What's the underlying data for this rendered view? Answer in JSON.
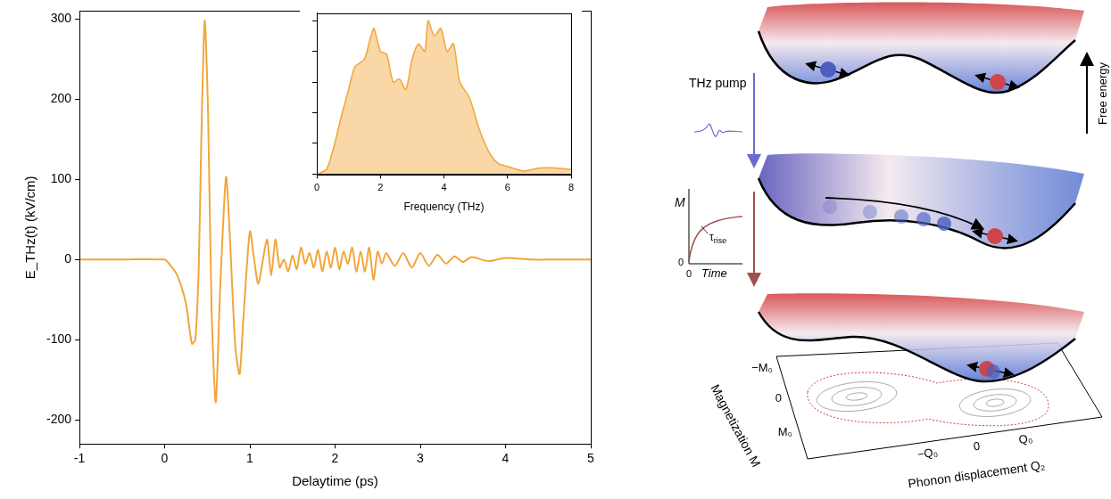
{
  "chart_data": [
    {
      "type": "line",
      "xlabel": "Delaytime (ps)",
      "ylabel": "E_THz(t) (kV/cm)",
      "x": [
        -1,
        -0.5,
        0,
        0.05,
        0.15,
        0.25,
        0.32,
        0.36,
        0.4,
        0.43,
        0.47,
        0.51,
        0.55,
        0.6,
        0.65,
        0.72,
        0.76,
        0.83,
        0.88,
        0.92,
        1.0,
        1.05,
        1.1,
        1.2,
        1.25,
        1.3,
        1.35,
        1.4,
        1.45,
        1.5,
        1.55,
        1.6,
        1.65,
        1.7,
        1.75,
        1.8,
        1.85,
        1.9,
        1.95,
        2.0,
        2.05,
        2.1,
        2.15,
        2.2,
        2.25,
        2.3,
        2.35,
        2.4,
        2.45,
        2.5,
        2.55,
        2.6,
        2.7,
        2.8,
        2.9,
        3.0,
        3.1,
        3.2,
        3.3,
        3.4,
        3.5,
        3.6,
        3.8,
        4.0,
        4.3,
        4.6,
        5
      ],
      "values": [
        0,
        0,
        0,
        -5,
        -20,
        -55,
        -105,
        -100,
        -10,
        150,
        298,
        180,
        -60,
        -178,
        -40,
        103,
        40,
        -110,
        -143,
        -80,
        35,
        0,
        -30,
        25,
        -20,
        25,
        -10,
        0,
        -15,
        5,
        -12,
        15,
        -5,
        8,
        -10,
        12,
        -15,
        10,
        -10,
        15,
        -12,
        10,
        -5,
        15,
        -15,
        10,
        -15,
        15,
        -25,
        10,
        -5,
        8,
        -8,
        8,
        -10,
        8,
        -8,
        6,
        -5,
        4,
        -3,
        3,
        -2,
        2,
        0,
        0,
        0
      ],
      "color": "#f2a63a",
      "xlim": [
        -1,
        5
      ],
      "xticks": [
        -1,
        0,
        1,
        2,
        3,
        4,
        5
      ],
      "ylim": [
        -230,
        310
      ],
      "yticks": [
        -200,
        -100,
        0,
        100,
        200,
        300
      ],
      "grid": false
    },
    {
      "type": "area",
      "xlabel": "Frequency (THz)",
      "x": [
        0,
        0.3,
        0.5,
        0.8,
        1.0,
        1.2,
        1.5,
        1.7,
        1.8,
        2.0,
        2.2,
        2.4,
        2.6,
        2.8,
        3.0,
        3.2,
        3.4,
        3.5,
        3.7,
        3.9,
        4.1,
        4.3,
        4.5,
        4.8,
        5.1,
        5.4,
        5.7,
        6.0,
        6.5,
        7.0,
        7.5,
        8.0
      ],
      "values": [
        0,
        0.03,
        0.15,
        0.4,
        0.55,
        0.7,
        0.75,
        0.9,
        0.95,
        0.8,
        0.78,
        0.6,
        0.62,
        0.55,
        0.75,
        0.85,
        0.8,
        1.0,
        0.9,
        0.95,
        0.8,
        0.85,
        0.6,
        0.5,
        0.3,
        0.15,
        0.07,
        0.05,
        0.02,
        0.04,
        0.04,
        0.03
      ],
      "color": "#f2a63a",
      "xlim": [
        0,
        8
      ],
      "xticks": [
        0,
        2,
        4,
        6,
        8
      ],
      "ylim": [
        0,
        1.05
      ],
      "yticks": [
        0,
        0.2,
        0.4,
        0.6,
        0.8,
        1.0
      ],
      "tick_labels": "x",
      "grid": false
    }
  ],
  "diagram": {
    "pump_label": "THz pump",
    "energy_axis": "Free energy",
    "inset": {
      "y_label": "M",
      "y_origin": "0",
      "x_origin": "0",
      "x_label": "Time",
      "time_constant": {
        "symbol": "τ",
        "subscript": "rise"
      }
    },
    "magnetization_axis": {
      "title": "Magnetization M",
      "ticks": [
        "−M₀",
        "0",
        "M₀"
      ]
    },
    "phonon_axis": {
      "title": "Phonon displacement Q₂",
      "ticks": [
        "−Q₀",
        "0",
        "Q₀"
      ]
    }
  }
}
